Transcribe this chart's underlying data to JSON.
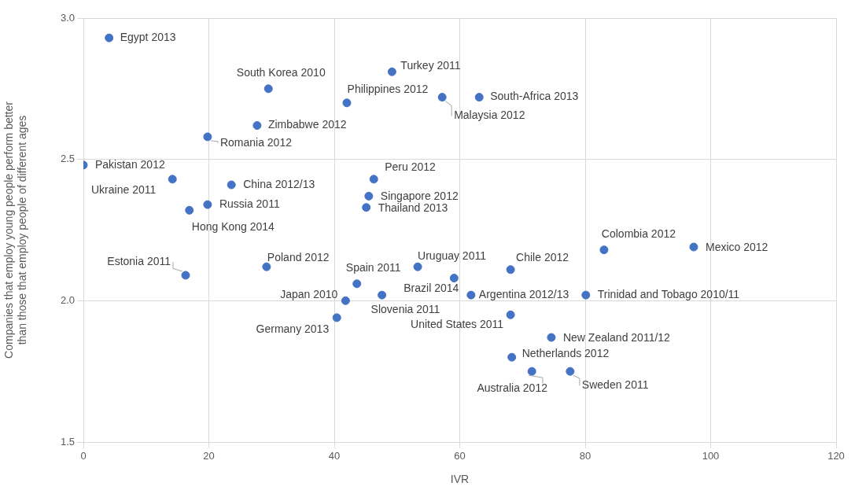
{
  "chart_data": {
    "type": "scatter",
    "xlabel": "IVR",
    "ylabel": "Companies that employ young people perform better than those that employ people of different ages",
    "xlim": [
      0,
      120
    ],
    "xticks": [
      0,
      20,
      40,
      60,
      80,
      100,
      120
    ],
    "ylim": [
      1.5,
      3
    ],
    "yticks": [
      {
        "value": 1.5,
        "label": "1.5"
      },
      {
        "value": 2,
        "label": "2.0"
      },
      {
        "value": 2.5,
        "label": "2.5"
      },
      {
        "value": 3,
        "label": "3.0"
      }
    ],
    "grid": true,
    "legend": false,
    "marker": "circle",
    "series": [
      {
        "color": "#4472c4",
        "x": [
          4.1,
          29.5,
          49.2,
          42,
          57.2,
          63.1,
          27.7,
          19.8,
          0,
          14.2,
          23.6,
          46.3,
          45.5,
          45.1,
          19.8,
          16.9,
          83,
          97.3,
          16.3,
          29.2,
          53.3,
          68.1,
          43.6,
          59.1,
          41.8,
          47.6,
          61.8,
          80.1,
          40.4,
          68.1,
          74.6,
          68.3,
          71.5,
          77.6
        ],
        "values": [
          2.93,
          2.75,
          2.81,
          2.7,
          2.72,
          2.72,
          2.62,
          2.58,
          2.48,
          2.43,
          2.41,
          2.43,
          2.37,
          2.33,
          2.34,
          2.32,
          2.18,
          2.19,
          2.09,
          2.12,
          2.12,
          2.11,
          2.06,
          2.08,
          2,
          2.02,
          2.02,
          2.02,
          1.94,
          1.95,
          1.87,
          1.8,
          1.75,
          1.75
        ]
      }
    ],
    "annotations": [
      {
        "text": "Egypt 2013",
        "x": 4.1,
        "y": 2.93
      },
      {
        "text": "South Korea 2010",
        "x": 29.5,
        "y": 2.75
      },
      {
        "text": "Turkey 2011",
        "x": 49.2,
        "y": 2.81
      },
      {
        "text": "Philippines 2012",
        "x": 42,
        "y": 2.7
      },
      {
        "text": "Malaysia 2012",
        "x": 57.2,
        "y": 2.72
      },
      {
        "text": "South-Africa 2013",
        "x": 63.1,
        "y": 2.72
      },
      {
        "text": "Zimbabwe 2012",
        "x": 27.7,
        "y": 2.62
      },
      {
        "text": "Romania 2012",
        "x": 19.8,
        "y": 2.58
      },
      {
        "text": "Pakistan 2012",
        "x": 0,
        "y": 2.48
      },
      {
        "text": "Ukraine 2011",
        "x": 14.2,
        "y": 2.43
      },
      {
        "text": "China 2012/13",
        "x": 23.6,
        "y": 2.41
      },
      {
        "text": "Peru 2012",
        "x": 46.3,
        "y": 2.43
      },
      {
        "text": "Singapore 2012",
        "x": 45.5,
        "y": 2.37
      },
      {
        "text": "Thailand 2013",
        "x": 45.1,
        "y": 2.33
      },
      {
        "text": "Russia 2011",
        "x": 19.8,
        "y": 2.34
      },
      {
        "text": "Hong Kong 2014",
        "x": 16.9,
        "y": 2.32
      },
      {
        "text": "Colombia 2012",
        "x": 83,
        "y": 2.18
      },
      {
        "text": "Mexico 2012",
        "x": 97.3,
        "y": 2.19
      },
      {
        "text": "Estonia 2011",
        "x": 16.3,
        "y": 2.09
      },
      {
        "text": "Poland 2012",
        "x": 29.2,
        "y": 2.12
      },
      {
        "text": "Uruguay 2011",
        "x": 53.3,
        "y": 2.12
      },
      {
        "text": "Chile 2012",
        "x": 68.1,
        "y": 2.11
      },
      {
        "text": "Spain 2011",
        "x": 43.6,
        "y": 2.06
      },
      {
        "text": "Brazil 2014",
        "x": 59.1,
        "y": 2.08
      },
      {
        "text": "Japan 2010",
        "x": 41.8,
        "y": 2
      },
      {
        "text": "Slovenia 2011",
        "x": 47.6,
        "y": 2.02
      },
      {
        "text": "Argentina 2012/13",
        "x": 61.8,
        "y": 2.02
      },
      {
        "text": "Trinidad and Tobago 2010/11",
        "x": 80.1,
        "y": 2.02
      },
      {
        "text": "Germany 2013",
        "x": 40.4,
        "y": 1.94
      },
      {
        "text": "United States 2011",
        "x": 68.1,
        "y": 1.95
      },
      {
        "text": "New Zealand 2011/12",
        "x": 74.6,
        "y": 1.87
      },
      {
        "text": "Netherlands 2012",
        "x": 68.3,
        "y": 1.8
      },
      {
        "text": "Australia 2012",
        "x": 71.5,
        "y": 1.75
      },
      {
        "text": "Sweden 2011",
        "x": 77.6,
        "y": 1.75
      }
    ]
  }
}
